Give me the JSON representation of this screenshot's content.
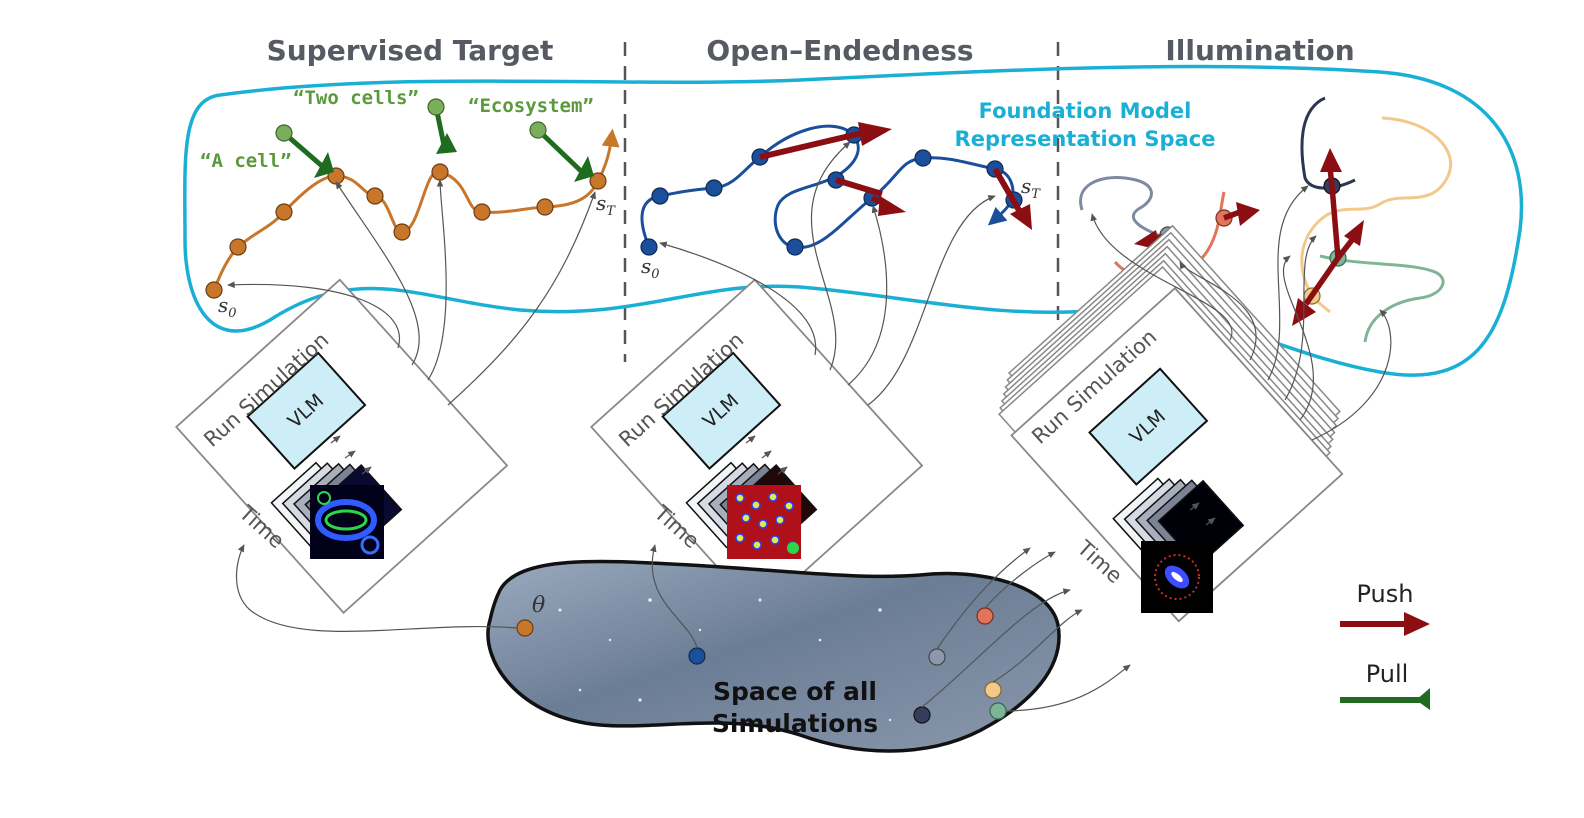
{
  "headers": {
    "supervised": "Supervised Target",
    "open_endedness": "Open–Endedness",
    "illumination": "Illumination"
  },
  "prompts": {
    "a_cell": "“A cell”",
    "two_cells": "“Two cells”",
    "ecosystem": "“Ecosystem”"
  },
  "foundation_model": {
    "line1": "Foundation Model",
    "line2": "Representation Space"
  },
  "math": {
    "s0": "s",
    "s0_sub": "0",
    "sT": "s",
    "sT_sub": "T",
    "theta": "θ"
  },
  "run_simulation": "Run Simulation",
  "time": "Time",
  "vlm": "VLM",
  "space_of_simulations": {
    "line1": "Space of all",
    "line2": "Simulations"
  },
  "legend": {
    "push": "Push",
    "pull": "Pull"
  },
  "colors": {
    "cyan_blob": "#1ab0d6",
    "orange": "#c8762a",
    "blue": "#1b4f9c",
    "push_red": "#8b0f12",
    "pull_green": "#1f6b1f",
    "vlm_fill": "#cdeef7",
    "prompt_green": "#5a9a3c"
  },
  "icons": {
    "push_arrow": "push-arrow-icon",
    "pull_arrow": "pull-arrow-icon"
  }
}
